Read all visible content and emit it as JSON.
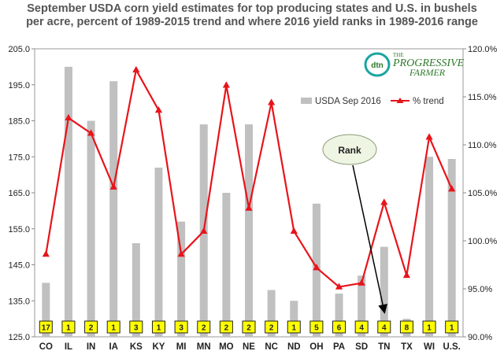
{
  "title": "September USDA corn yield estimates for top producing states and U.S. in bushels per acre, percent of 1989-2015 trend and where 2016 yield ranks in 1989-2016 range",
  "logo": {
    "mark": "dtn",
    "line1": "THE",
    "line2": "PROGRESSIVE",
    "line3": "FARMER"
  },
  "chart_data": {
    "type": "bar",
    "categories": [
      "CO",
      "IL",
      "IN",
      "IA",
      "KS",
      "KY",
      "MI",
      "MN",
      "MO",
      "NE",
      "NC",
      "ND",
      "OH",
      "PA",
      "SD",
      "TN",
      "TX",
      "WI",
      "U.S."
    ],
    "series": [
      {
        "name": "USDA Sep 2016",
        "type": "bar",
        "axis": "left",
        "color": "#c0c0c0",
        "values": [
          140,
          200,
          185,
          196,
          151,
          172,
          157,
          184,
          165,
          184,
          138,
          135,
          162,
          137,
          142,
          150,
          130,
          175,
          174.4
        ]
      },
      {
        "name": "% trend",
        "type": "line",
        "axis": "right",
        "color": "#e8141b",
        "marker": "triangle",
        "values": [
          98.6,
          112.8,
          111.2,
          105.6,
          117.8,
          113.6,
          98.6,
          101.0,
          116.2,
          103.4,
          114.4,
          101.0,
          97.2,
          95.2,
          95.6,
          104.0,
          96.4,
          110.8,
          105.4
        ]
      }
    ],
    "ranks": [
      "17",
      "1",
      "2",
      "1",
      "3",
      "1",
      "3",
      "2",
      "2",
      "2",
      "2",
      "1",
      "5",
      "6",
      "4",
      "4",
      "8",
      "1",
      "1"
    ],
    "yaxis_left": {
      "min": 125,
      "max": 205,
      "ticks": [
        "125.0",
        "135.0",
        "145.0",
        "155.0",
        "165.0",
        "175.0",
        "185.0",
        "195.0",
        "205.0"
      ]
    },
    "yaxis_right": {
      "min": 90,
      "max": 120,
      "ticks": [
        "90.0%",
        "95.0%",
        "100.0%",
        "105.0%",
        "110.0%",
        "115.0%",
        "120.0%"
      ]
    },
    "annotation": {
      "text": "Rank",
      "points_to": "TN"
    },
    "legend": {
      "position": "top-right"
    },
    "grid": false
  }
}
